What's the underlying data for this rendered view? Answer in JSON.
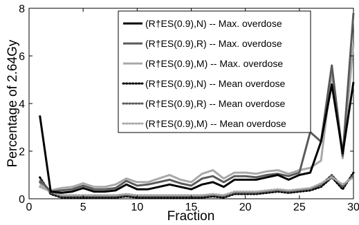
{
  "chart_data": {
    "type": "line",
    "title": "",
    "xlabel": "Fraction",
    "ylabel": "Percentage of 2.64Gy",
    "xlim": [
      0,
      30
    ],
    "ylim": [
      0,
      8
    ],
    "xticks": [
      0,
      5,
      10,
      15,
      20,
      25,
      30
    ],
    "yticks": [
      0,
      2,
      4,
      6,
      8
    ],
    "legend_position": "top-right",
    "x": [
      1,
      2,
      3,
      4,
      5,
      6,
      7,
      8,
      9,
      10,
      11,
      12,
      13,
      14,
      15,
      16,
      17,
      18,
      19,
      20,
      21,
      22,
      23,
      24,
      25,
      26,
      27,
      28,
      29,
      30
    ],
    "series": [
      {
        "name": "(R†ES(0.9),N) -- Max. overdose",
        "color": "#000000",
        "style": "solid",
        "width": 3,
        "values": [
          3.5,
          0.3,
          0.25,
          0.3,
          0.45,
          0.3,
          0.3,
          0.35,
          0.6,
          0.4,
          0.4,
          0.5,
          0.6,
          0.5,
          0.4,
          0.6,
          0.7,
          0.5,
          0.8,
          0.8,
          0.8,
          0.9,
          1.0,
          0.8,
          1.0,
          1.1,
          2.4,
          4.8,
          1.9,
          4.9
        ]
      },
      {
        "name": "(R†ES(0.9),R) -- Max. overdose",
        "color": "#5a5a5a",
        "style": "solid",
        "width": 3,
        "values": [
          0.8,
          0.3,
          0.35,
          0.4,
          0.55,
          0.4,
          0.4,
          0.45,
          0.75,
          0.55,
          0.6,
          0.7,
          0.8,
          0.65,
          0.55,
          0.85,
          0.95,
          0.7,
          0.95,
          0.95,
          0.9,
          1.0,
          1.05,
          0.95,
          1.1,
          2.8,
          2.4,
          5.6,
          1.8,
          7.8
        ]
      },
      {
        "name": "(R†ES(0.9),M) -- Max. overdose",
        "color": "#a8a8a8",
        "style": "solid",
        "width": 3,
        "values": [
          0.6,
          0.35,
          0.45,
          0.5,
          0.65,
          0.5,
          0.5,
          0.6,
          0.85,
          0.7,
          0.7,
          0.85,
          1.0,
          0.8,
          0.7,
          1.05,
          1.2,
          0.85,
          1.1,
          1.1,
          1.05,
          1.15,
          1.2,
          1.05,
          1.2,
          1.3,
          1.6,
          5.3,
          1.7,
          6.5
        ]
      },
      {
        "name": "(R†ES(0.9),N) -- Mean overdose",
        "color": "#000000",
        "style": "dotted",
        "width": 3,
        "values": [
          0.9,
          0.2,
          0.05,
          0.05,
          0.05,
          0.05,
          0.05,
          0.05,
          0.1,
          0.05,
          0.05,
          0.05,
          0.05,
          0.05,
          0.05,
          0.05,
          0.1,
          0.05,
          0.2,
          0.2,
          0.2,
          0.25,
          0.3,
          0.25,
          0.3,
          0.35,
          0.5,
          0.9,
          0.4,
          1.1
        ]
      },
      {
        "name": "(R†ES(0.9),R) -- Mean overdose",
        "color": "#5a5a5a",
        "style": "dotted",
        "width": 3,
        "values": [
          0.7,
          0.25,
          0.1,
          0.1,
          0.1,
          0.1,
          0.1,
          0.1,
          0.15,
          0.1,
          0.1,
          0.1,
          0.1,
          0.1,
          0.1,
          0.1,
          0.15,
          0.1,
          0.25,
          0.25,
          0.25,
          0.3,
          0.35,
          0.3,
          0.35,
          0.4,
          0.6,
          1.0,
          0.5,
          1.0
        ]
      },
      {
        "name": "(R†ES(0.9),M) -- Mean overdose",
        "color": "#a8a8a8",
        "style": "dotted",
        "width": 3,
        "values": [
          0.5,
          0.3,
          0.15,
          0.15,
          0.15,
          0.15,
          0.15,
          0.15,
          0.2,
          0.15,
          0.15,
          0.15,
          0.15,
          0.15,
          0.15,
          0.15,
          0.2,
          0.15,
          0.3,
          0.3,
          0.3,
          0.35,
          0.4,
          0.35,
          0.4,
          0.45,
          0.65,
          0.9,
          0.6,
          0.9
        ]
      }
    ]
  }
}
